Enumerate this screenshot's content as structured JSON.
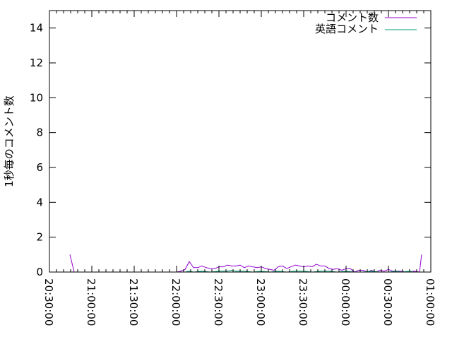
{
  "chart_data": {
    "type": "line",
    "title": "",
    "xlabel": "",
    "ylabel": "1秒毎のコメント数",
    "xlim": [
      "20:30:00",
      "01:00:00"
    ],
    "ylim": [
      0,
      15
    ],
    "x_ticks": [
      "20:30:00",
      "21:00:00",
      "21:30:00",
      "22:00:00",
      "22:30:00",
      "23:00:00",
      "23:30:00",
      "00:00:00",
      "00:30:00",
      "01:00:00"
    ],
    "y_ticks": [
      "0",
      "2",
      "4",
      "6",
      "8",
      "10",
      "12",
      "14"
    ],
    "grid": false,
    "legend_position": "top-right",
    "series": [
      {
        "name": "コメント数",
        "color": "#9400d3",
        "points": [
          [
            "20:44:30",
            1.0
          ],
          [
            "20:47:30",
            0
          ],
          [
            "22:00:00",
            0
          ],
          [
            "22:03:00",
            0.05
          ],
          [
            "22:06:00",
            0.15
          ],
          [
            "22:09:00",
            0.6
          ],
          [
            "22:12:00",
            0.25
          ],
          [
            "22:15:00",
            0.25
          ],
          [
            "22:18:00",
            0.35
          ],
          [
            "22:21:00",
            0.25
          ],
          [
            "22:24:00",
            0.2
          ],
          [
            "22:27:00",
            0.2
          ],
          [
            "22:30:00",
            0.3
          ],
          [
            "22:33:00",
            0.3
          ],
          [
            "22:36:00",
            0.4
          ],
          [
            "22:39:00",
            0.35
          ],
          [
            "22:42:00",
            0.35
          ],
          [
            "22:45:00",
            0.4
          ],
          [
            "22:48:00",
            0.25
          ],
          [
            "22:51:00",
            0.35
          ],
          [
            "22:54:00",
            0.3
          ],
          [
            "22:57:00",
            0.25
          ],
          [
            "23:00:00",
            0.3
          ],
          [
            "23:03:00",
            0.2
          ],
          [
            "23:06:00",
            0.15
          ],
          [
            "23:09:00",
            0.1
          ],
          [
            "23:12:00",
            0.3
          ],
          [
            "23:15:00",
            0.35
          ],
          [
            "23:18:00",
            0.2
          ],
          [
            "23:21:00",
            0.3
          ],
          [
            "23:24:00",
            0.4
          ],
          [
            "23:27:00",
            0.35
          ],
          [
            "23:30:00",
            0.3
          ],
          [
            "23:33:00",
            0.35
          ],
          [
            "23:36:00",
            0.3
          ],
          [
            "23:39:00",
            0.45
          ],
          [
            "23:42:00",
            0.35
          ],
          [
            "23:45:00",
            0.35
          ],
          [
            "23:48:00",
            0.2
          ],
          [
            "23:51:00",
            0.15
          ],
          [
            "23:54:00",
            0.2
          ],
          [
            "23:57:00",
            0.1
          ],
          [
            "00:00:00",
            0.2
          ],
          [
            "00:03:00",
            0.2
          ],
          [
            "00:06:00",
            0.0
          ],
          [
            "00:09:00",
            0.1
          ],
          [
            "00:12:00",
            0.1
          ],
          [
            "00:15:00",
            0.0
          ],
          [
            "00:18:00",
            0.1
          ],
          [
            "00:21:00",
            0.0
          ],
          [
            "00:24:00",
            0.1
          ],
          [
            "00:27:00",
            0.05
          ],
          [
            "00:30:00",
            0.15
          ],
          [
            "00:33:00",
            0.05
          ],
          [
            "00:36:00",
            0.05
          ],
          [
            "00:39:00",
            0.05
          ],
          [
            "00:42:00",
            0.0
          ],
          [
            "00:45:00",
            0.0
          ],
          [
            "00:48:00",
            0.05
          ],
          [
            "00:52:00",
            0.0
          ],
          [
            "00:53:30",
            1.0
          ]
        ]
      },
      {
        "name": "英語コメント",
        "color": "#009e73",
        "points": [
          [
            "22:06:00",
            0
          ],
          [
            "22:09:00",
            0.05
          ],
          [
            "22:12:00",
            0
          ],
          [
            "22:18:00",
            0.05
          ],
          [
            "22:24:00",
            0
          ],
          [
            "22:30:00",
            0.05
          ],
          [
            "22:36:00",
            0.05
          ],
          [
            "22:39:00",
            0.1
          ],
          [
            "22:42:00",
            0.05
          ],
          [
            "22:48:00",
            0.05
          ],
          [
            "22:54:00",
            0
          ],
          [
            "23:00:00",
            0.05
          ],
          [
            "23:06:00",
            0.0
          ],
          [
            "23:12:00",
            0.05
          ],
          [
            "23:18:00",
            0
          ],
          [
            "23:24:00",
            0.05
          ],
          [
            "23:30:00",
            0.05
          ],
          [
            "23:36:00",
            0
          ],
          [
            "23:42:00",
            0.05
          ],
          [
            "23:48:00",
            0.05
          ],
          [
            "23:54:00",
            0
          ],
          [
            "00:00:00",
            0.05
          ],
          [
            "00:06:00",
            0
          ],
          [
            "00:12:00",
            0.0
          ],
          [
            "00:18:00",
            0.05
          ],
          [
            "00:24:00",
            0.0
          ],
          [
            "00:30:00",
            0.0
          ],
          [
            "00:36:00",
            0.05
          ],
          [
            "00:39:00",
            0.0
          ],
          [
            "00:45:00",
            0.05
          ],
          [
            "00:48:00",
            0.0
          ],
          [
            "00:52:00",
            0.0
          ]
        ]
      }
    ]
  }
}
